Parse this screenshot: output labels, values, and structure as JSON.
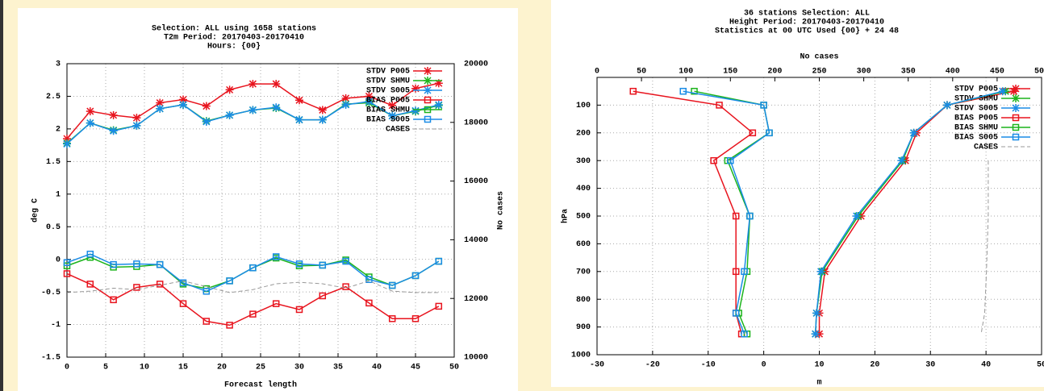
{
  "chart_data": [
    {
      "type": "line",
      "title": [
        "Selection: ALL using  1658 stations",
        "T2m    Period: 20170403-20170410",
        "Hours: {00}"
      ],
      "xlabel": "Forecast length",
      "ylabel": "deg C",
      "y2label": "No cases",
      "x": [
        0,
        3,
        6,
        9,
        12,
        15,
        18,
        21,
        24,
        27,
        30,
        33,
        36,
        39,
        42,
        45,
        48
      ],
      "xlim": [
        0,
        50
      ],
      "xticks": [
        0,
        5,
        10,
        15,
        20,
        25,
        30,
        35,
        40,
        45,
        50
      ],
      "ylim": [
        -1.5,
        3
      ],
      "yticks": [
        -1.5,
        -1,
        -0.5,
        0,
        0.5,
        1,
        1.5,
        2,
        2.5,
        3
      ],
      "y2lim": [
        10000,
        20000
      ],
      "y2ticks": [
        10000,
        12000,
        14000,
        16000,
        18000,
        20000
      ],
      "grid": true,
      "series": [
        {
          "name": "STDV P005",
          "color": "#e8141e",
          "marker": "star",
          "values": [
            1.85,
            2.27,
            2.21,
            2.17,
            2.4,
            2.45,
            2.35,
            2.6,
            2.69,
            2.69,
            2.44,
            2.29,
            2.47,
            2.5,
            2.36,
            2.62,
            2.7
          ]
        },
        {
          "name": "STDV SHMU",
          "color": "#1cb41c",
          "marker": "star",
          "values": [
            1.78,
            2.09,
            1.98,
            2.05,
            2.31,
            2.37,
            2.12,
            2.21,
            2.29,
            2.32,
            2.14,
            2.14,
            2.38,
            2.4,
            2.2,
            2.27,
            2.36
          ]
        },
        {
          "name": "STDV S005",
          "color": "#1a8ce6",
          "marker": "star",
          "values": [
            1.77,
            2.09,
            1.97,
            2.05,
            2.31,
            2.37,
            2.11,
            2.21,
            2.29,
            2.33,
            2.14,
            2.14,
            2.37,
            2.42,
            2.2,
            2.28,
            2.37
          ]
        },
        {
          "name": "BIAS P005",
          "color": "#e8141e",
          "marker": "square",
          "values": [
            -0.22,
            -0.38,
            -0.62,
            -0.43,
            -0.38,
            -0.68,
            -0.95,
            -1.01,
            -0.84,
            -0.68,
            -0.77,
            -0.56,
            -0.42,
            -0.67,
            -0.91,
            -0.91,
            -0.72
          ]
        },
        {
          "name": "BIAS SHMU",
          "color": "#1cb41c",
          "marker": "square",
          "values": [
            -0.1,
            0.03,
            -0.12,
            -0.11,
            -0.08,
            -0.38,
            -0.45,
            -0.33,
            -0.13,
            0.02,
            -0.1,
            -0.09,
            -0.01,
            -0.27,
            -0.4,
            -0.25,
            -0.03
          ]
        },
        {
          "name": "BIAS S005",
          "color": "#1a8ce6",
          "marker": "square",
          "values": [
            -0.05,
            0.08,
            -0.08,
            -0.07,
            -0.08,
            -0.36,
            -0.49,
            -0.33,
            -0.13,
            0.04,
            -0.07,
            -0.09,
            -0.03,
            -0.31,
            -0.4,
            -0.25,
            -0.03
          ]
        },
        {
          "name": "CASES",
          "color": "#999999",
          "dash": true,
          "axis": "y2",
          "values": [
            12200,
            12250,
            12350,
            12300,
            12450,
            12600,
            12400,
            12200,
            12300,
            12500,
            12550,
            12500,
            12350,
            12600,
            12250,
            12200,
            12200
          ]
        }
      ]
    },
    {
      "type": "profile",
      "title": [
        "36 stations Selection: ALL",
        "Height  Period: 20170403-20170410",
        "Statistics at 00 UTC  Used {00} + 24 48"
      ],
      "xlabel": "m",
      "ylabel": "hPa",
      "x2label": "No cases",
      "levels": [
        50,
        100,
        200,
        300,
        500,
        700,
        850,
        925
      ],
      "xlim": [
        -30,
        50
      ],
      "xticks": [
        -30,
        -20,
        -10,
        0,
        10,
        20,
        30,
        40,
        50
      ],
      "x2lim": [
        0,
        500
      ],
      "x2ticks": [
        0,
        50,
        100,
        150,
        200,
        250,
        300,
        350,
        400,
        450,
        500
      ],
      "ylim": [
        1000,
        0
      ],
      "yticks": [
        100,
        200,
        300,
        400,
        500,
        600,
        700,
        800,
        900,
        1000
      ],
      "grid": true,
      "series": [
        {
          "name": "STDV P005",
          "color": "#e8141e",
          "marker": "star",
          "values": [
            45,
            33,
            27.5,
            25.5,
            17.5,
            11,
            10,
            10
          ]
        },
        {
          "name": "STDV SHMU",
          "color": "#1cb41c",
          "marker": "star",
          "values": [
            43.5,
            33,
            27,
            25,
            17,
            10.5,
            9.5,
            9.3
          ]
        },
        {
          "name": "STDV S005",
          "color": "#1a8ce6",
          "marker": "star",
          "values": [
            43,
            33,
            27,
            24.8,
            16.7,
            10.3,
            9.5,
            9.3
          ]
        },
        {
          "name": "BIAS P005",
          "color": "#e8141e",
          "marker": "square",
          "values": [
            -23.5,
            -8,
            -2,
            -9,
            -5,
            -5,
            -5,
            -4
          ]
        },
        {
          "name": "BIAS SHMU",
          "color": "#1cb41c",
          "marker": "square",
          "values": [
            -12.5,
            0,
            1,
            -6.5,
            -2.5,
            -3,
            -4.5,
            -3
          ]
        },
        {
          "name": "BIAS S005",
          "color": "#1a8ce6",
          "marker": "square",
          "values": [
            -14.5,
            0,
            1,
            -6,
            -2.5,
            -3.5,
            -5,
            -3.5
          ]
        },
        {
          "name": "CASES",
          "color": "#999999",
          "dash": true,
          "axis": "x2",
          "values": [
            null,
            null,
            null,
            440,
            440,
            438,
            436,
            432
          ]
        }
      ]
    }
  ]
}
